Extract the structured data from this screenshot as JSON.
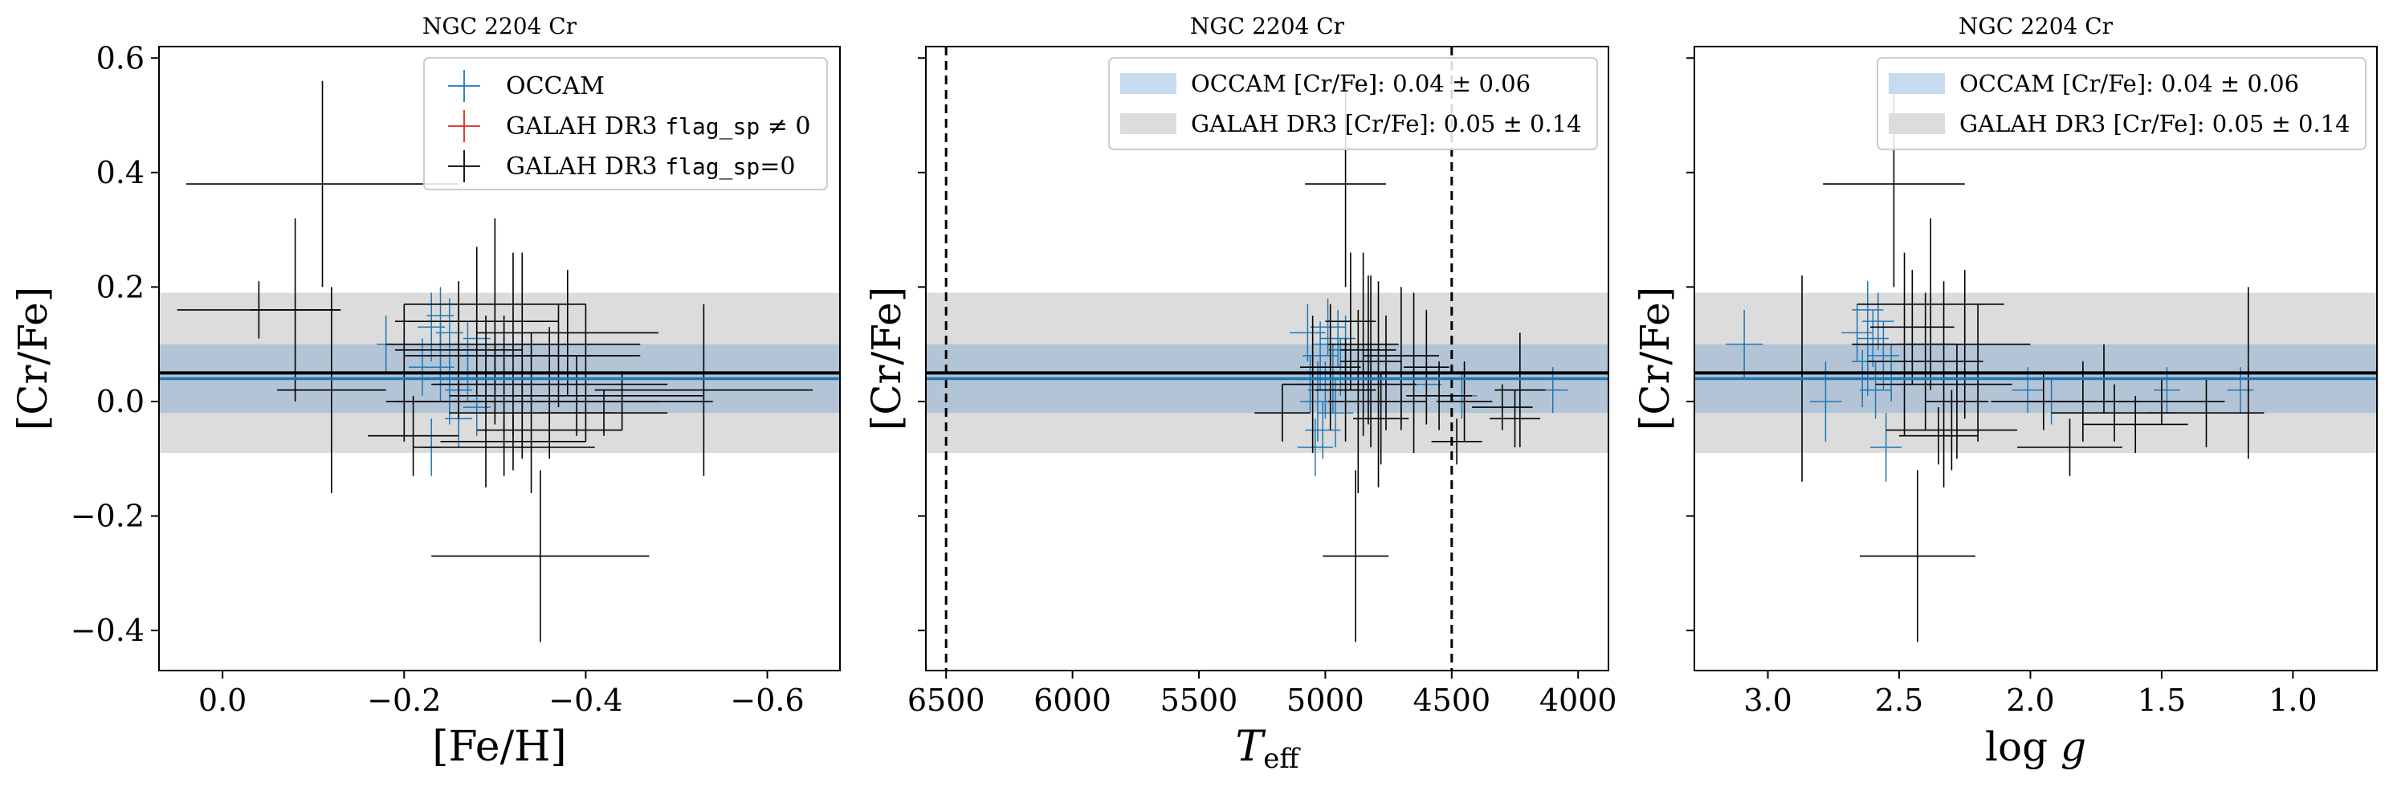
{
  "colors": {
    "occam": "#1f77b4",
    "occam_band": "#c6dbef",
    "galah_bad": "#d62728",
    "galah_good": "#000000",
    "galah_band": "#dcdcdc",
    "overlap_band": "#b3c4d6"
  },
  "occam_mean": 0.04,
  "occam_sigma": 0.06,
  "galah_mean": 0.05,
  "galah_sigma": 0.14,
  "chart_data": [
    {
      "type": "scatter",
      "title": "NGC 2204 Cr",
      "xlabel": "[Fe/H]",
      "ylabel": "[Cr/Fe]",
      "xlim": [
        0.07,
        -0.68
      ],
      "ylim": [
        -0.47,
        0.62
      ],
      "x_reversed": true,
      "xticks": [
        0.0,
        -0.2,
        -0.4,
        -0.6
      ],
      "xtick_labels": [
        "0.0",
        "−0.2",
        "−0.4",
        "−0.6"
      ],
      "yticks": [
        -0.4,
        -0.2,
        0.0,
        0.2,
        0.4,
        0.6
      ],
      "ytick_labels": [
        "−0.4",
        "−0.2",
        "0.0",
        "0.2",
        "0.4",
        "0.6"
      ],
      "legend_position": "top-right",
      "legend": [
        {
          "label": "OCCAM",
          "marker": "cross",
          "color": "#1f77b4"
        },
        {
          "label": "GALAH DR3",
          "code": "flag_sp",
          "suffix": " ≠ 0",
          "marker": "cross",
          "color": "#d62728"
        },
        {
          "label": "GALAH DR3",
          "code": "flag_sp",
          "suffix": "=0",
          "marker": "cross",
          "color": "#000000"
        }
      ],
      "series": [
        {
          "name": "OCCAM",
          "color": "#1f77b4",
          "points": [
            [
              -0.18,
              0.1,
              0.01,
              0.05
            ],
            [
              -0.23,
              -0.08,
              0.01,
              0.05
            ],
            [
              -0.24,
              0.06,
              0.015,
              0.06
            ],
            [
              -0.25,
              0.03,
              0.015,
              0.05
            ],
            [
              -0.26,
              0.1,
              0.015,
              0.07
            ],
            [
              -0.27,
              0.05,
              0.015,
              0.05
            ],
            [
              -0.25,
              0.12,
              0.015,
              0.06
            ],
            [
              -0.24,
              0.09,
              0.015,
              0.05
            ],
            [
              -0.28,
              -0.01,
              0.015,
              0.05
            ],
            [
              -0.26,
              0.02,
              0.015,
              0.07
            ],
            [
              -0.22,
              0.06,
              0.015,
              0.05
            ],
            [
              -0.27,
              0.08,
              0.015,
              0.06
            ],
            [
              -0.29,
              0.04,
              0.015,
              0.05
            ],
            [
              -0.23,
              0.13,
              0.015,
              0.06
            ],
            [
              -0.25,
              0.0,
              0.015,
              0.04
            ],
            [
              -0.28,
              0.11,
              0.015,
              0.06
            ],
            [
              -0.26,
              -0.03,
              0.015,
              0.05
            ],
            [
              -0.24,
              0.15,
              0.015,
              0.05
            ]
          ]
        },
        {
          "name": "GALAH DR3 flag_sp ≠ 0",
          "color": "#d62728",
          "points": []
        },
        {
          "name": "GALAH DR3 flag_sp=0",
          "color": "#000000",
          "points": [
            [
              -0.11,
              0.38,
              0.15,
              0.18
            ],
            [
              -0.08,
              0.16,
              0.05,
              0.16
            ],
            [
              -0.12,
              0.02,
              0.06,
              0.18
            ],
            [
              -0.32,
              0.1,
              0.14,
              0.16
            ],
            [
              -0.3,
              0.17,
              0.1,
              0.15
            ],
            [
              -0.35,
              -0.27,
              0.12,
              0.15
            ],
            [
              -0.33,
              0.08,
              0.13,
              0.18
            ],
            [
              -0.28,
              0.14,
              0.09,
              0.13
            ],
            [
              -0.36,
              0.03,
              0.13,
              0.1
            ],
            [
              -0.39,
              0.01,
              0.14,
              0.07
            ],
            [
              -0.44,
              0.0,
              0.1,
              0.05
            ],
            [
              -0.31,
              0.05,
              0.11,
              0.1
            ],
            [
              -0.29,
              0.0,
              0.1,
              0.15
            ],
            [
              -0.32,
              -0.07,
              0.08,
              0.05
            ],
            [
              -0.4,
              0.05,
              0.07,
              0.12
            ],
            [
              -0.34,
              -0.02,
              0.09,
              0.14
            ],
            [
              -0.53,
              0.02,
              0.12,
              0.15
            ],
            [
              -0.04,
              0.16,
              0.09,
              0.05
            ],
            [
              -0.21,
              -0.06,
              0.05,
              0.07
            ],
            [
              -0.37,
              0.08,
              0.08,
              0.09
            ],
            [
              -0.33,
              0.0,
              0.15,
              0.07
            ],
            [
              -0.3,
              0.04,
              0.1,
              0.08
            ],
            [
              -0.26,
              0.09,
              0.07,
              0.12
            ],
            [
              -0.42,
              -0.02,
              0.07,
              0.04
            ],
            [
              -0.31,
              -0.08,
              0.1,
              0.05
            ],
            [
              -0.36,
              -0.05,
              0.08,
              0.05
            ],
            [
              -0.2,
              0.05,
              0.06,
              0.12
            ],
            [
              -0.38,
              0.12,
              0.1,
              0.11
            ]
          ]
        }
      ]
    },
    {
      "type": "scatter",
      "title": "NGC 2204 Cr",
      "xlabel": "T_eff",
      "ylabel": "[Cr/Fe]",
      "xlim": [
        6580,
        3880
      ],
      "ylim": [
        -0.47,
        0.62
      ],
      "x_reversed": true,
      "xticks": [
        6500,
        6000,
        5500,
        5000,
        4500,
        4000
      ],
      "xtick_labels": [
        "6500",
        "6000",
        "5500",
        "5000",
        "4500",
        "4000"
      ],
      "yticks": [
        -0.4,
        -0.2,
        0.0,
        0.2,
        0.4,
        0.6
      ],
      "ytick_labels": [
        "",
        "",
        "",
        "",
        "",
        ""
      ],
      "vlines": [
        6500,
        4500
      ],
      "legend_position": "top-right",
      "legend": [
        {
          "label": "OCCAM [Cr/Fe]: 0.04 ± 0.06",
          "color": "#c6dbef",
          "marker": "patch"
        },
        {
          "label": "GALAH DR3 [Cr/Fe]: 0.05 ± 0.14",
          "color": "#dcdcdc",
          "marker": "patch"
        }
      ],
      "series": [
        {
          "name": "OCCAM",
          "color": "#1f77b4",
          "points": [
            [
              5020,
              0.08,
              70,
              0.06
            ],
            [
              5050,
              0.05,
              70,
              0.05
            ],
            [
              4980,
              0.1,
              70,
              0.06
            ],
            [
              5000,
              0.02,
              70,
              0.05
            ],
            [
              4960,
              -0.02,
              70,
              0.06
            ],
            [
              5070,
              0.12,
              70,
              0.05
            ],
            [
              4940,
              0.06,
              70,
              0.05
            ],
            [
              5030,
              0.0,
              70,
              0.07
            ],
            [
              4990,
              0.13,
              70,
              0.05
            ],
            [
              5060,
              0.03,
              70,
              0.05
            ],
            [
              4920,
              0.09,
              70,
              0.06
            ],
            [
              5010,
              -0.05,
              70,
              0.05
            ],
            [
              4970,
              0.04,
              70,
              0.06
            ],
            [
              4950,
              0.11,
              70,
              0.05
            ],
            [
              5040,
              -0.08,
              70,
              0.05
            ],
            [
              4100,
              0.02,
              60,
              0.04
            ],
            [
              4460,
              0.01,
              60,
              0.04
            ],
            [
              4600,
              0.03,
              60,
              0.05
            ]
          ]
        },
        {
          "name": "GALAH DR3 flag_sp=0",
          "color": "#000000",
          "points": [
            [
              4920,
              0.38,
              160,
              0.18
            ],
            [
              4880,
              -0.27,
              130,
              0.15
            ],
            [
              5170,
              -0.02,
              110,
              0.05
            ],
            [
              4850,
              0.1,
              140,
              0.16
            ],
            [
              4820,
              0.07,
              120,
              0.15
            ],
            [
              4790,
              0.03,
              150,
              0.18
            ],
            [
              4900,
              0.14,
              100,
              0.12
            ],
            [
              4760,
              0.05,
              130,
              0.1
            ],
            [
              4700,
              0.08,
              150,
              0.12
            ],
            [
              4980,
              0.06,
              120,
              0.11
            ],
            [
              4870,
              0.0,
              120,
              0.16
            ],
            [
              4920,
              0.02,
              120,
              0.09
            ],
            [
              4650,
              0.05,
              100,
              0.14
            ],
            [
              4450,
              0.0,
              110,
              0.07
            ],
            [
              4480,
              -0.07,
              100,
              0.04
            ],
            [
              4300,
              -0.01,
              120,
              0.04
            ],
            [
              4250,
              -0.03,
              100,
              0.05
            ],
            [
              4230,
              0.02,
              100,
              0.1
            ],
            [
              4550,
              0.01,
              130,
              0.06
            ],
            [
              4830,
              0.09,
              110,
              0.13
            ],
            [
              5050,
              0.03,
              120,
              0.12
            ],
            [
              4780,
              -0.03,
              110,
              0.08
            ],
            [
              4700,
              0.0,
              100,
              0.05
            ],
            [
              4600,
              0.06,
              90,
              0.1
            ]
          ]
        }
      ]
    },
    {
      "type": "scatter",
      "title": "NGC 2204 Cr",
      "xlabel": "log g",
      "ylabel": "[Cr/Fe]",
      "xlim": [
        3.28,
        0.68
      ],
      "ylim": [
        -0.47,
        0.62
      ],
      "x_reversed": true,
      "xticks": [
        3.0,
        2.5,
        2.0,
        1.5,
        1.0
      ],
      "xtick_labels": [
        "3.0",
        "2.5",
        "2.0",
        "1.5",
        "1.0"
      ],
      "yticks": [
        -0.4,
        -0.2,
        0.0,
        0.2,
        0.4,
        0.6
      ],
      "ytick_labels": [
        "",
        "",
        "",
        "",
        "",
        ""
      ],
      "legend_position": "top-right",
      "legend": [
        {
          "label": "OCCAM [Cr/Fe]: 0.04 ± 0.06",
          "color": "#c6dbef",
          "marker": "patch"
        },
        {
          "label": "GALAH DR3 [Cr/Fe]: 0.05 ± 0.14",
          "color": "#dcdcdc",
          "marker": "patch"
        }
      ],
      "series": [
        {
          "name": "OCCAM",
          "color": "#1f77b4",
          "points": [
            [
              3.09,
              0.1,
              0.07,
              0.06
            ],
            [
              2.78,
              0.0,
              0.06,
              0.07
            ],
            [
              2.62,
              0.07,
              0.06,
              0.06
            ],
            [
              2.6,
              0.11,
              0.06,
              0.05
            ],
            [
              2.58,
              0.14,
              0.06,
              0.05
            ],
            [
              2.64,
              0.04,
              0.06,
              0.05
            ],
            [
              2.56,
              0.08,
              0.06,
              0.06
            ],
            [
              2.66,
              0.12,
              0.06,
              0.05
            ],
            [
              2.55,
              -0.08,
              0.06,
              0.06
            ],
            [
              2.59,
              0.02,
              0.06,
              0.05
            ],
            [
              2.62,
              0.16,
              0.06,
              0.05
            ],
            [
              2.53,
              0.05,
              0.06,
              0.05
            ],
            [
              2.01,
              0.02,
              0.06,
              0.04
            ],
            [
              1.92,
              0.0,
              0.05,
              0.04
            ],
            [
              1.48,
              0.02,
              0.05,
              0.04
            ],
            [
              1.2,
              0.02,
              0.05,
              0.04
            ]
          ]
        },
        {
          "name": "GALAH DR3 flag_sp=0",
          "color": "#000000",
          "points": [
            [
              2.52,
              0.38,
              0.27,
              0.18
            ],
            [
              2.43,
              -0.27,
              0.22,
              0.15
            ],
            [
              2.87,
              0.04,
              0.3,
              0.18
            ],
            [
              2.48,
              0.1,
              0.2,
              0.16
            ],
            [
              2.38,
              0.17,
              0.28,
              0.15
            ],
            [
              2.33,
              0.03,
              0.26,
              0.18
            ],
            [
              2.25,
              0.1,
              0.25,
              0.13
            ],
            [
              2.4,
              0.07,
              0.22,
              0.12
            ],
            [
              2.3,
              -0.05,
              0.25,
              0.07
            ],
            [
              2.2,
              0.05,
              0.18,
              0.12
            ],
            [
              1.95,
              0.0,
              0.2,
              0.05
            ],
            [
              1.8,
              0.0,
              0.22,
              0.07
            ],
            [
              1.68,
              -0.02,
              0.24,
              0.05
            ],
            [
              1.5,
              0.0,
              0.24,
              0.04
            ],
            [
              1.17,
              0.05,
              0.25,
              0.15
            ],
            [
              1.85,
              -0.08,
              0.2,
              0.05
            ],
            [
              1.6,
              -0.04,
              0.2,
              0.05
            ],
            [
              2.35,
              -0.06,
              0.15,
              0.05
            ],
            [
              2.28,
              0.0,
              0.12,
              0.1
            ],
            [
              2.45,
              0.13,
              0.16,
              0.1
            ],
            [
              1.33,
              -0.02,
              0.22,
              0.06
            ],
            [
              1.72,
              0.04,
              0.2,
              0.06
            ]
          ]
        }
      ]
    }
  ]
}
